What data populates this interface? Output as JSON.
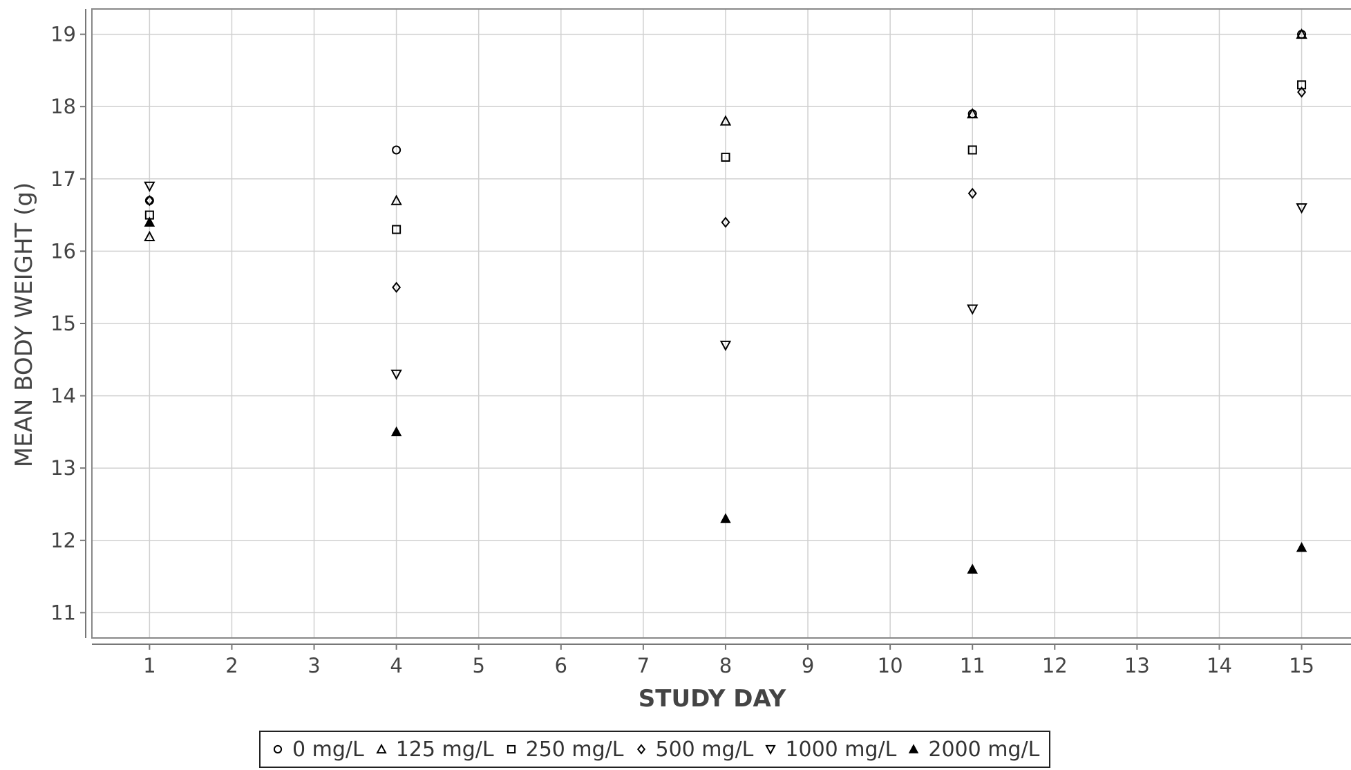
{
  "chart_data": {
    "type": "scatter",
    "xlabel": "STUDY DAY",
    "ylabel": "MEAN BODY WEIGHT (g)",
    "xlim": [
      0.3,
      15.6
    ],
    "ylim": [
      10.65,
      19.35
    ],
    "x_ticks": [
      1,
      2,
      3,
      4,
      5,
      6,
      7,
      8,
      9,
      10,
      11,
      12,
      13,
      14,
      15
    ],
    "y_ticks": [
      11,
      12,
      13,
      14,
      15,
      16,
      17,
      18,
      19
    ],
    "grid": true,
    "legend_position": "bottom-center",
    "series": [
      {
        "name": "0 mg/L",
        "marker": "circle",
        "color": "#000000",
        "points": [
          {
            "x": 1,
            "y": 16.7
          },
          {
            "x": 4,
            "y": 17.4
          },
          {
            "x": 8,
            "y": null
          },
          {
            "x": 11,
            "y": 17.9
          },
          {
            "x": 15,
            "y": 19.0
          }
        ]
      },
      {
        "name": "125 mg/L",
        "marker": "triangle-up-open",
        "color": "#000000",
        "points": [
          {
            "x": 1,
            "y": 16.2
          },
          {
            "x": 4,
            "y": 16.7
          },
          {
            "x": 8,
            "y": 17.8
          },
          {
            "x": 11,
            "y": 17.9
          },
          {
            "x": 15,
            "y": 19.0
          }
        ]
      },
      {
        "name": "250 mg/L",
        "marker": "square",
        "color": "#000000",
        "points": [
          {
            "x": 1,
            "y": 16.5
          },
          {
            "x": 4,
            "y": 16.3
          },
          {
            "x": 8,
            "y": 17.3
          },
          {
            "x": 11,
            "y": 17.4
          },
          {
            "x": 15,
            "y": 18.3
          }
        ]
      },
      {
        "name": "500 mg/L",
        "marker": "diamond",
        "color": "#000000",
        "points": [
          {
            "x": 1,
            "y": 16.7
          },
          {
            "x": 4,
            "y": 15.5
          },
          {
            "x": 8,
            "y": 16.4
          },
          {
            "x": 11,
            "y": 16.8
          },
          {
            "x": 15,
            "y": 18.2
          }
        ]
      },
      {
        "name": "1000 mg/L",
        "marker": "triangle-down-open",
        "color": "#000000",
        "points": [
          {
            "x": 1,
            "y": 16.9
          },
          {
            "x": 4,
            "y": 14.3
          },
          {
            "x": 8,
            "y": 14.7
          },
          {
            "x": 11,
            "y": 15.2
          },
          {
            "x": 15,
            "y": 16.6
          }
        ]
      },
      {
        "name": "2000 mg/L",
        "marker": "triangle-up-filled",
        "color": "#000000",
        "points": [
          {
            "x": 1,
            "y": 16.4
          },
          {
            "x": 4,
            "y": 13.5
          },
          {
            "x": 8,
            "y": 12.3
          },
          {
            "x": 11,
            "y": 11.6
          },
          {
            "x": 15,
            "y": 11.9
          }
        ]
      }
    ]
  }
}
